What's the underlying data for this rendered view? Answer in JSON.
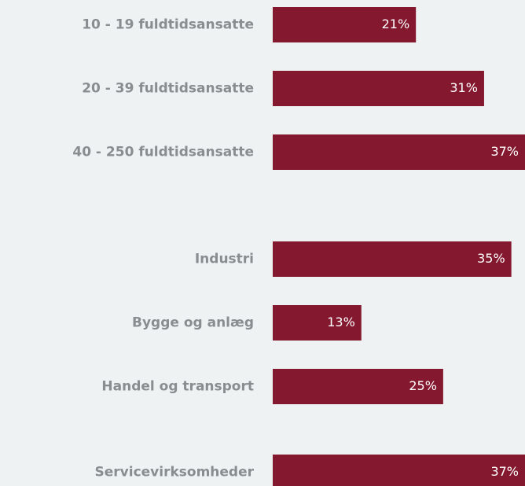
{
  "chart_data": [
    {
      "type": "bar",
      "orientation": "horizontal",
      "color": "#84182f",
      "categories": [
        "10 - 19 fuldtidsansatte",
        "20 - 39 fuldtidsansatte",
        "40 - 250 fuldtidsansatte"
      ],
      "values": [
        21,
        31,
        37
      ],
      "value_labels": [
        "21%",
        "31%",
        "37%"
      ]
    },
    {
      "type": "bar",
      "orientation": "horizontal",
      "color": "#84182f",
      "categories": [
        "Industri",
        "Bygge og anlæg",
        "Handel og transport",
        "Servicevirksomheder"
      ],
      "values": [
        35,
        13,
        25,
        37
      ],
      "value_labels": [
        "35%",
        "13%",
        "25%",
        "37%"
      ]
    }
  ]
}
